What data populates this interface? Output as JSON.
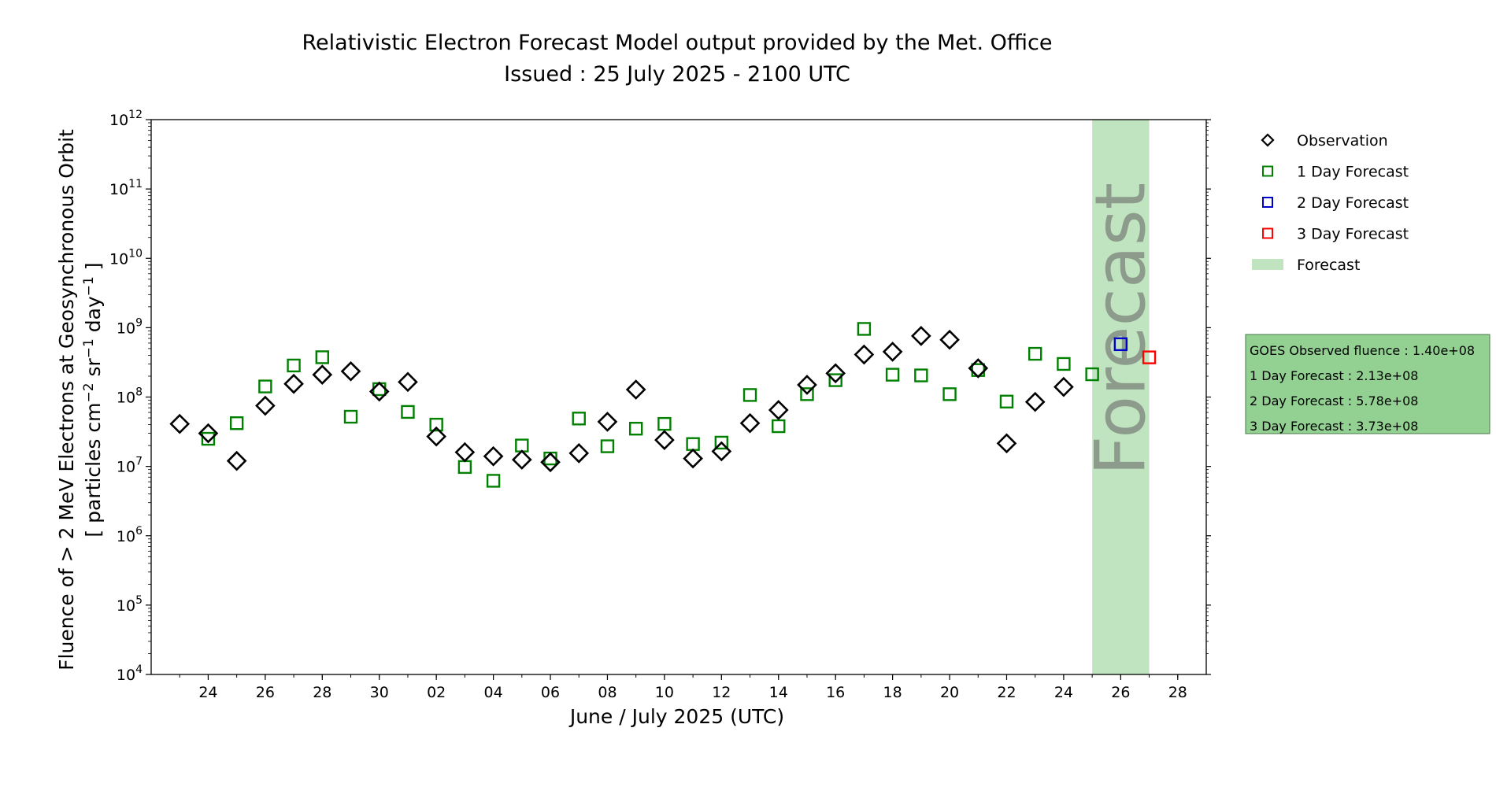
{
  "chart_data": {
    "type": "scatter",
    "title_line1": "Relativistic Electron Forecast Model output provided by the Met. Office",
    "title_line2": "Issued : 25 July 2025 - 2100 UTC",
    "xlabel": "June / July 2025 (UTC)",
    "ylabel_line1": "Fluence of > 2 MeV Electrons at Geosynchronous Orbit",
    "ylabel_line2_parts": {
      "open": "[ particles cm",
      "exp1": "−2",
      "mid1": " sr",
      "exp2": "−1",
      "mid2": " day",
      "exp3": "−1",
      "close": " ]"
    },
    "y_scale": "log",
    "ylim_exponents": [
      4,
      12
    ],
    "y_tick_exponents": [
      4,
      5,
      6,
      7,
      8,
      9,
      10,
      11,
      12
    ],
    "y_tick_base": "10",
    "xlim": [
      "2025-06-22",
      "2025-07-29"
    ],
    "x_ticks": [
      {
        "date": "2025-06-24",
        "label": "24"
      },
      {
        "date": "2025-06-26",
        "label": "26"
      },
      {
        "date": "2025-06-28",
        "label": "28"
      },
      {
        "date": "2025-06-30",
        "label": "30"
      },
      {
        "date": "2025-07-02",
        "label": "02"
      },
      {
        "date": "2025-07-04",
        "label": "04"
      },
      {
        "date": "2025-07-06",
        "label": "06"
      },
      {
        "date": "2025-07-08",
        "label": "08"
      },
      {
        "date": "2025-07-10",
        "label": "10"
      },
      {
        "date": "2025-07-12",
        "label": "12"
      },
      {
        "date": "2025-07-14",
        "label": "14"
      },
      {
        "date": "2025-07-16",
        "label": "16"
      },
      {
        "date": "2025-07-18",
        "label": "18"
      },
      {
        "date": "2025-07-20",
        "label": "20"
      },
      {
        "date": "2025-07-22",
        "label": "22"
      },
      {
        "date": "2025-07-24",
        "label": "24"
      },
      {
        "date": "2025-07-26",
        "label": "26"
      },
      {
        "date": "2025-07-28",
        "label": "28"
      }
    ],
    "forecast_band": {
      "start": "2025-07-25",
      "end": "2025-07-27",
      "label": "Forecast",
      "color": "#bfe4bf"
    },
    "series": [
      {
        "name": "Observation",
        "marker": "diamond",
        "color": "#000000",
        "points": [
          {
            "x": "2025-06-23",
            "y": 41000000.0
          },
          {
            "x": "2025-06-24",
            "y": 30000000.0
          },
          {
            "x": "2025-06-25",
            "y": 12000000.0
          },
          {
            "x": "2025-06-26",
            "y": 75000000.0
          },
          {
            "x": "2025-06-27",
            "y": 155000000.0
          },
          {
            "x": "2025-06-28",
            "y": 210000000.0
          },
          {
            "x": "2025-06-29",
            "y": 235000000.0
          },
          {
            "x": "2025-06-30",
            "y": 120000000.0
          },
          {
            "x": "2025-07-01",
            "y": 165000000.0
          },
          {
            "x": "2025-07-02",
            "y": 27000000.0
          },
          {
            "x": "2025-07-03",
            "y": 16000000.0
          },
          {
            "x": "2025-07-04",
            "y": 14000000.0
          },
          {
            "x": "2025-07-05",
            "y": 12500000.0
          },
          {
            "x": "2025-07-06",
            "y": 11500000.0
          },
          {
            "x": "2025-07-07",
            "y": 15500000.0
          },
          {
            "x": "2025-07-08",
            "y": 44000000.0
          },
          {
            "x": "2025-07-09",
            "y": 128000000.0
          },
          {
            "x": "2025-07-10",
            "y": 24000000.0
          },
          {
            "x": "2025-07-11",
            "y": 13000000.0
          },
          {
            "x": "2025-07-12",
            "y": 16500000.0
          },
          {
            "x": "2025-07-13",
            "y": 42000000.0
          },
          {
            "x": "2025-07-14",
            "y": 65000000.0
          },
          {
            "x": "2025-07-15",
            "y": 150000000.0
          },
          {
            "x": "2025-07-16",
            "y": 220000000.0
          },
          {
            "x": "2025-07-17",
            "y": 410000000.0
          },
          {
            "x": "2025-07-18",
            "y": 450000000.0
          },
          {
            "x": "2025-07-19",
            "y": 760000000.0
          },
          {
            "x": "2025-07-20",
            "y": 670000000.0
          },
          {
            "x": "2025-07-21",
            "y": 260000000.0
          },
          {
            "x": "2025-07-22",
            "y": 21500000.0
          },
          {
            "x": "2025-07-23",
            "y": 85000000.0
          },
          {
            "x": "2025-07-24",
            "y": 140000000.0
          }
        ]
      },
      {
        "name": "1 Day Forecast",
        "marker": "square",
        "color": "#008000",
        "points": [
          {
            "x": "2025-06-24",
            "y": 25000000.0
          },
          {
            "x": "2025-06-25",
            "y": 42000000.0
          },
          {
            "x": "2025-06-26",
            "y": 142000000.0
          },
          {
            "x": "2025-06-27",
            "y": 285000000.0
          },
          {
            "x": "2025-06-28",
            "y": 375000000.0
          },
          {
            "x": "2025-06-29",
            "y": 52000000.0
          },
          {
            "x": "2025-06-30",
            "y": 130000000.0
          },
          {
            "x": "2025-07-01",
            "y": 61000000.0
          },
          {
            "x": "2025-07-02",
            "y": 40000000.0
          },
          {
            "x": "2025-07-03",
            "y": 9800000.0
          },
          {
            "x": "2025-07-04",
            "y": 6200000.0
          },
          {
            "x": "2025-07-05",
            "y": 20000000.0
          },
          {
            "x": "2025-07-06",
            "y": 13000000.0
          },
          {
            "x": "2025-07-07",
            "y": 49000000.0
          },
          {
            "x": "2025-07-08",
            "y": 19500000.0
          },
          {
            "x": "2025-07-09",
            "y": 35000000.0
          },
          {
            "x": "2025-07-10",
            "y": 41000000.0
          },
          {
            "x": "2025-07-11",
            "y": 21000000.0
          },
          {
            "x": "2025-07-12",
            "y": 22000000.0
          },
          {
            "x": "2025-07-13",
            "y": 107000000.0
          },
          {
            "x": "2025-07-14",
            "y": 38000000.0
          },
          {
            "x": "2025-07-15",
            "y": 110000000.0
          },
          {
            "x": "2025-07-16",
            "y": 175000000.0
          },
          {
            "x": "2025-07-17",
            "y": 960000000.0
          },
          {
            "x": "2025-07-18",
            "y": 210000000.0
          },
          {
            "x": "2025-07-19",
            "y": 205000000.0
          },
          {
            "x": "2025-07-20",
            "y": 110000000.0
          },
          {
            "x": "2025-07-21",
            "y": 245000000.0
          },
          {
            "x": "2025-07-22",
            "y": 86000000.0
          },
          {
            "x": "2025-07-23",
            "y": 420000000.0
          },
          {
            "x": "2025-07-24",
            "y": 300000000.0
          },
          {
            "x": "2025-07-25",
            "y": 213000000.0
          }
        ]
      },
      {
        "name": "2 Day Forecast",
        "marker": "square",
        "color": "#0000cc",
        "points": [
          {
            "x": "2025-07-26",
            "y": 578000000.0
          }
        ]
      },
      {
        "name": "3 Day Forecast",
        "marker": "square",
        "color": "#ff0000",
        "points": [
          {
            "x": "2025-07-27",
            "y": 373000000.0
          }
        ]
      }
    ],
    "legend": {
      "position": "right",
      "items": [
        {
          "label": "Observation",
          "marker": "diamond",
          "color": "#000000"
        },
        {
          "label": "1 Day Forecast",
          "marker": "square",
          "color": "#008000"
        },
        {
          "label": "2 Day Forecast",
          "marker": "square",
          "color": "#0000cc"
        },
        {
          "label": "3 Day Forecast",
          "marker": "square",
          "color": "#ff0000"
        },
        {
          "label": "Forecast",
          "marker": "band",
          "color": "#bfe4bf"
        }
      ]
    },
    "info_box": {
      "background": "#92d192",
      "lines": [
        "GOES Observed fluence : 1.40e+08",
        "1 Day Forecast : 2.13e+08",
        "2 Day Forecast : 5.78e+08",
        "3 Day Forecast : 3.73e+08"
      ]
    },
    "grid": false
  }
}
